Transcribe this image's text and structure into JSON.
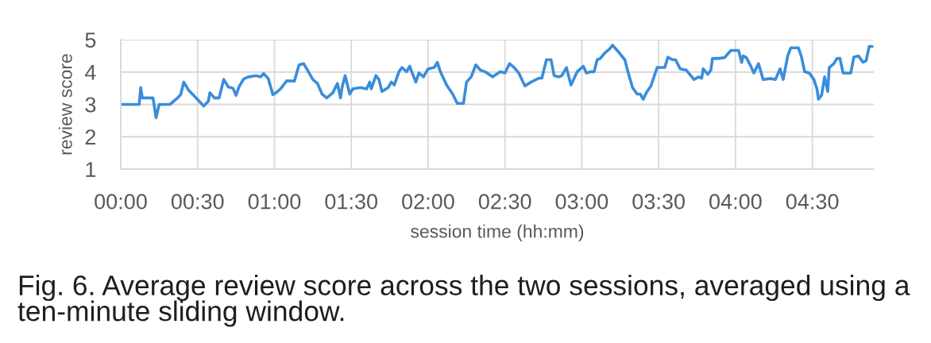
{
  "chart_data": {
    "type": "line",
    "xlabel": "session time (hh:mm)",
    "ylabel": "review score",
    "annotations": [
      "Fig. 6. Average review score across the two sessions, averaged using a ten-minute sliding window."
    ],
    "x": [
      0.0,
      0.12,
      0.13,
      0.14,
      0.21,
      0.23,
      0.25,
      0.32,
      0.37,
      0.39,
      0.41,
      0.44,
      0.49,
      0.54,
      0.57,
      0.58,
      0.61,
      0.64,
      0.67,
      0.7,
      0.73,
      0.75,
      0.77,
      0.8,
      0.83,
      0.88,
      0.91,
      0.93,
      0.96,
      0.99,
      1.01,
      1.04,
      1.08,
      1.13,
      1.16,
      1.19,
      1.21,
      1.25,
      1.28,
      1.31,
      1.34,
      1.38,
      1.41,
      1.43,
      1.44,
      1.46,
      1.49,
      1.51,
      1.56,
      1.6,
      1.62,
      1.63,
      1.66,
      1.68,
      1.7,
      1.74,
      1.76,
      1.78,
      1.81,
      1.83,
      1.86,
      1.88,
      1.9,
      1.92,
      1.94,
      1.97,
      2.0,
      2.04,
      2.06,
      2.08,
      2.12,
      2.16,
      2.19,
      2.23,
      2.25,
      2.28,
      2.31,
      2.34,
      2.37,
      2.42,
      2.47,
      2.5,
      2.53,
      2.56,
      2.59,
      2.63,
      2.67,
      2.72,
      2.74,
      2.77,
      2.8,
      2.82,
      2.85,
      2.87,
      2.9,
      2.92,
      2.93,
      2.97,
      3.01,
      3.03,
      3.06,
      3.08,
      3.1,
      3.12,
      3.15,
      3.18,
      3.2,
      3.23,
      3.28,
      3.3,
      3.33,
      3.36,
      3.38,
      3.4,
      3.42,
      3.45,
      3.49,
      3.54,
      3.56,
      3.59,
      3.61,
      3.64,
      3.68,
      3.73,
      3.76,
      3.78,
      3.79,
      3.82,
      3.84,
      3.85,
      3.89,
      3.93,
      3.97,
      4.02,
      4.04,
      4.05,
      4.07,
      4.1,
      4.12,
      4.15,
      4.18,
      4.23,
      4.26,
      4.29,
      4.31,
      4.34,
      4.36,
      4.41,
      4.43,
      4.45,
      4.48,
      4.51,
      4.53,
      4.54,
      4.56,
      4.58,
      4.6,
      4.61,
      4.64,
      4.66,
      4.68,
      4.7,
      4.75,
      4.77,
      4.8,
      4.83,
      4.85,
      4.87,
      4.89
    ],
    "series": [
      {
        "color": "#3a8ddb",
        "values": [
          3.0,
          3.0,
          3.52,
          3.2,
          3.2,
          2.59,
          3.0,
          3.0,
          3.2,
          3.3,
          3.69,
          3.45,
          3.2,
          2.95,
          3.1,
          3.36,
          3.2,
          3.2,
          3.77,
          3.54,
          3.5,
          3.28,
          3.55,
          3.79,
          3.85,
          3.89,
          3.85,
          3.95,
          3.8,
          3.3,
          3.36,
          3.48,
          3.73,
          3.72,
          4.22,
          4.26,
          4.1,
          3.77,
          3.65,
          3.32,
          3.2,
          3.36,
          3.65,
          3.2,
          3.52,
          3.89,
          3.32,
          3.48,
          3.52,
          3.48,
          3.69,
          3.48,
          3.89,
          3.77,
          3.4,
          3.52,
          3.69,
          3.6,
          4.01,
          4.14,
          4.01,
          4.18,
          3.93,
          3.69,
          3.97,
          3.85,
          4.1,
          4.14,
          4.3,
          4.01,
          3.6,
          3.32,
          3.03,
          3.03,
          3.69,
          3.85,
          4.22,
          4.06,
          4.01,
          3.85,
          4.01,
          3.97,
          4.26,
          4.14,
          3.97,
          3.57,
          3.69,
          3.81,
          3.81,
          4.38,
          4.38,
          3.89,
          3.85,
          3.89,
          4.14,
          3.77,
          3.6,
          4.01,
          4.18,
          3.97,
          4.01,
          4.01,
          4.38,
          4.42,
          4.59,
          4.71,
          4.83,
          4.67,
          4.38,
          4.01,
          3.52,
          3.32,
          3.32,
          3.16,
          3.36,
          3.57,
          4.14,
          4.14,
          4.46,
          4.38,
          4.38,
          4.1,
          4.06,
          3.77,
          3.85,
          3.81,
          4.1,
          3.93,
          4.06,
          4.42,
          4.42,
          4.45,
          4.67,
          4.67,
          4.3,
          4.5,
          4.45,
          4.18,
          3.97,
          4.26,
          3.77,
          3.8,
          3.77,
          4.1,
          3.77,
          4.5,
          4.75,
          4.75,
          4.46,
          4.01,
          3.97,
          3.77,
          3.48,
          3.16,
          3.28,
          3.85,
          3.4,
          4.14,
          4.26,
          4.42,
          4.42,
          3.97,
          3.97,
          4.46,
          4.5,
          4.3,
          4.35,
          4.79,
          4.79
        ]
      }
    ],
    "xlim": [
      0,
      4.9
    ],
    "ylim": [
      1,
      5
    ],
    "xticks": [
      {
        "value": 0,
        "label": "00:00"
      },
      {
        "value": 0.5,
        "label": "00:30"
      },
      {
        "value": 1,
        "label": "01:00"
      },
      {
        "value": 1.5,
        "label": "01:30"
      },
      {
        "value": 2,
        "label": "02:00"
      },
      {
        "value": 2.5,
        "label": "02:30"
      },
      {
        "value": 3,
        "label": "03:00"
      },
      {
        "value": 3.5,
        "label": "03:30"
      },
      {
        "value": 4,
        "label": "04:00"
      },
      {
        "value": 4.5,
        "label": "04:30"
      }
    ],
    "yticks": [
      1,
      2,
      3,
      4,
      5
    ],
    "grid": true,
    "line_style": "solid"
  }
}
